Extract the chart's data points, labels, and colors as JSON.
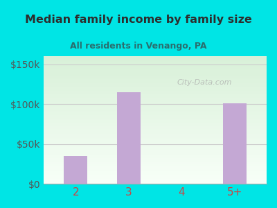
{
  "categories": [
    "2",
    "3",
    "4",
    "5+"
  ],
  "values": [
    35000,
    115000,
    0,
    101000
  ],
  "bar_color": "#c4a8d4",
  "title": "Median family income by family size",
  "subtitle": "All residents in Venango, PA",
  "title_color": "#2d2d2d",
  "subtitle_color": "#2a6e6e",
  "bg_outer": "#00e5e5",
  "bg_inner_top": "#e8f5e8",
  "bg_inner_bottom": "#f5fff5",
  "yticks": [
    0,
    50000,
    100000,
    150000
  ],
  "ylim": [
    0,
    160000
  ],
  "xlabel_color": "#cc4444",
  "ylabel_color": "#555555",
  "grid_color": "#cccccc",
  "watermark": "City-Data.com"
}
